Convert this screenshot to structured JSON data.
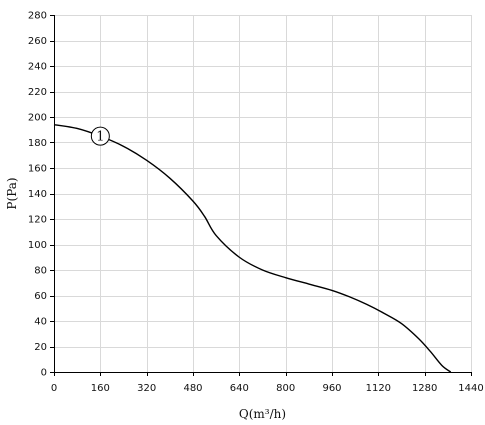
{
  "chart_data": {
    "type": "line",
    "title": "",
    "xlabel": "Q(m³/h)",
    "ylabel": "P(Pa)",
    "xlim": [
      0,
      1440
    ],
    "ylim": [
      0,
      280
    ],
    "x_ticks": [
      0,
      160,
      320,
      480,
      640,
      800,
      960,
      1120,
      1280,
      1440
    ],
    "y_ticks": [
      0,
      20,
      40,
      60,
      80,
      100,
      120,
      140,
      160,
      180,
      200,
      220,
      240,
      260,
      280
    ],
    "grid": true,
    "legend": "none",
    "series": [
      {
        "marker_label": "1",
        "marker_at": [
          160,
          185
        ],
        "color": "#000000",
        "x": [
          0,
          80,
          160,
          240,
          320,
          400,
          480,
          520,
          560,
          640,
          720,
          800,
          880,
          960,
          1020,
          1080,
          1140,
          1200,
          1260,
          1300,
          1340,
          1370
        ],
        "y": [
          194,
          191,
          185,
          177,
          166,
          152,
          134,
          122,
          107,
          90,
          80,
          74,
          69,
          64,
          59,
          53,
          46,
          38,
          26,
          16,
          5,
          0
        ]
      }
    ]
  }
}
